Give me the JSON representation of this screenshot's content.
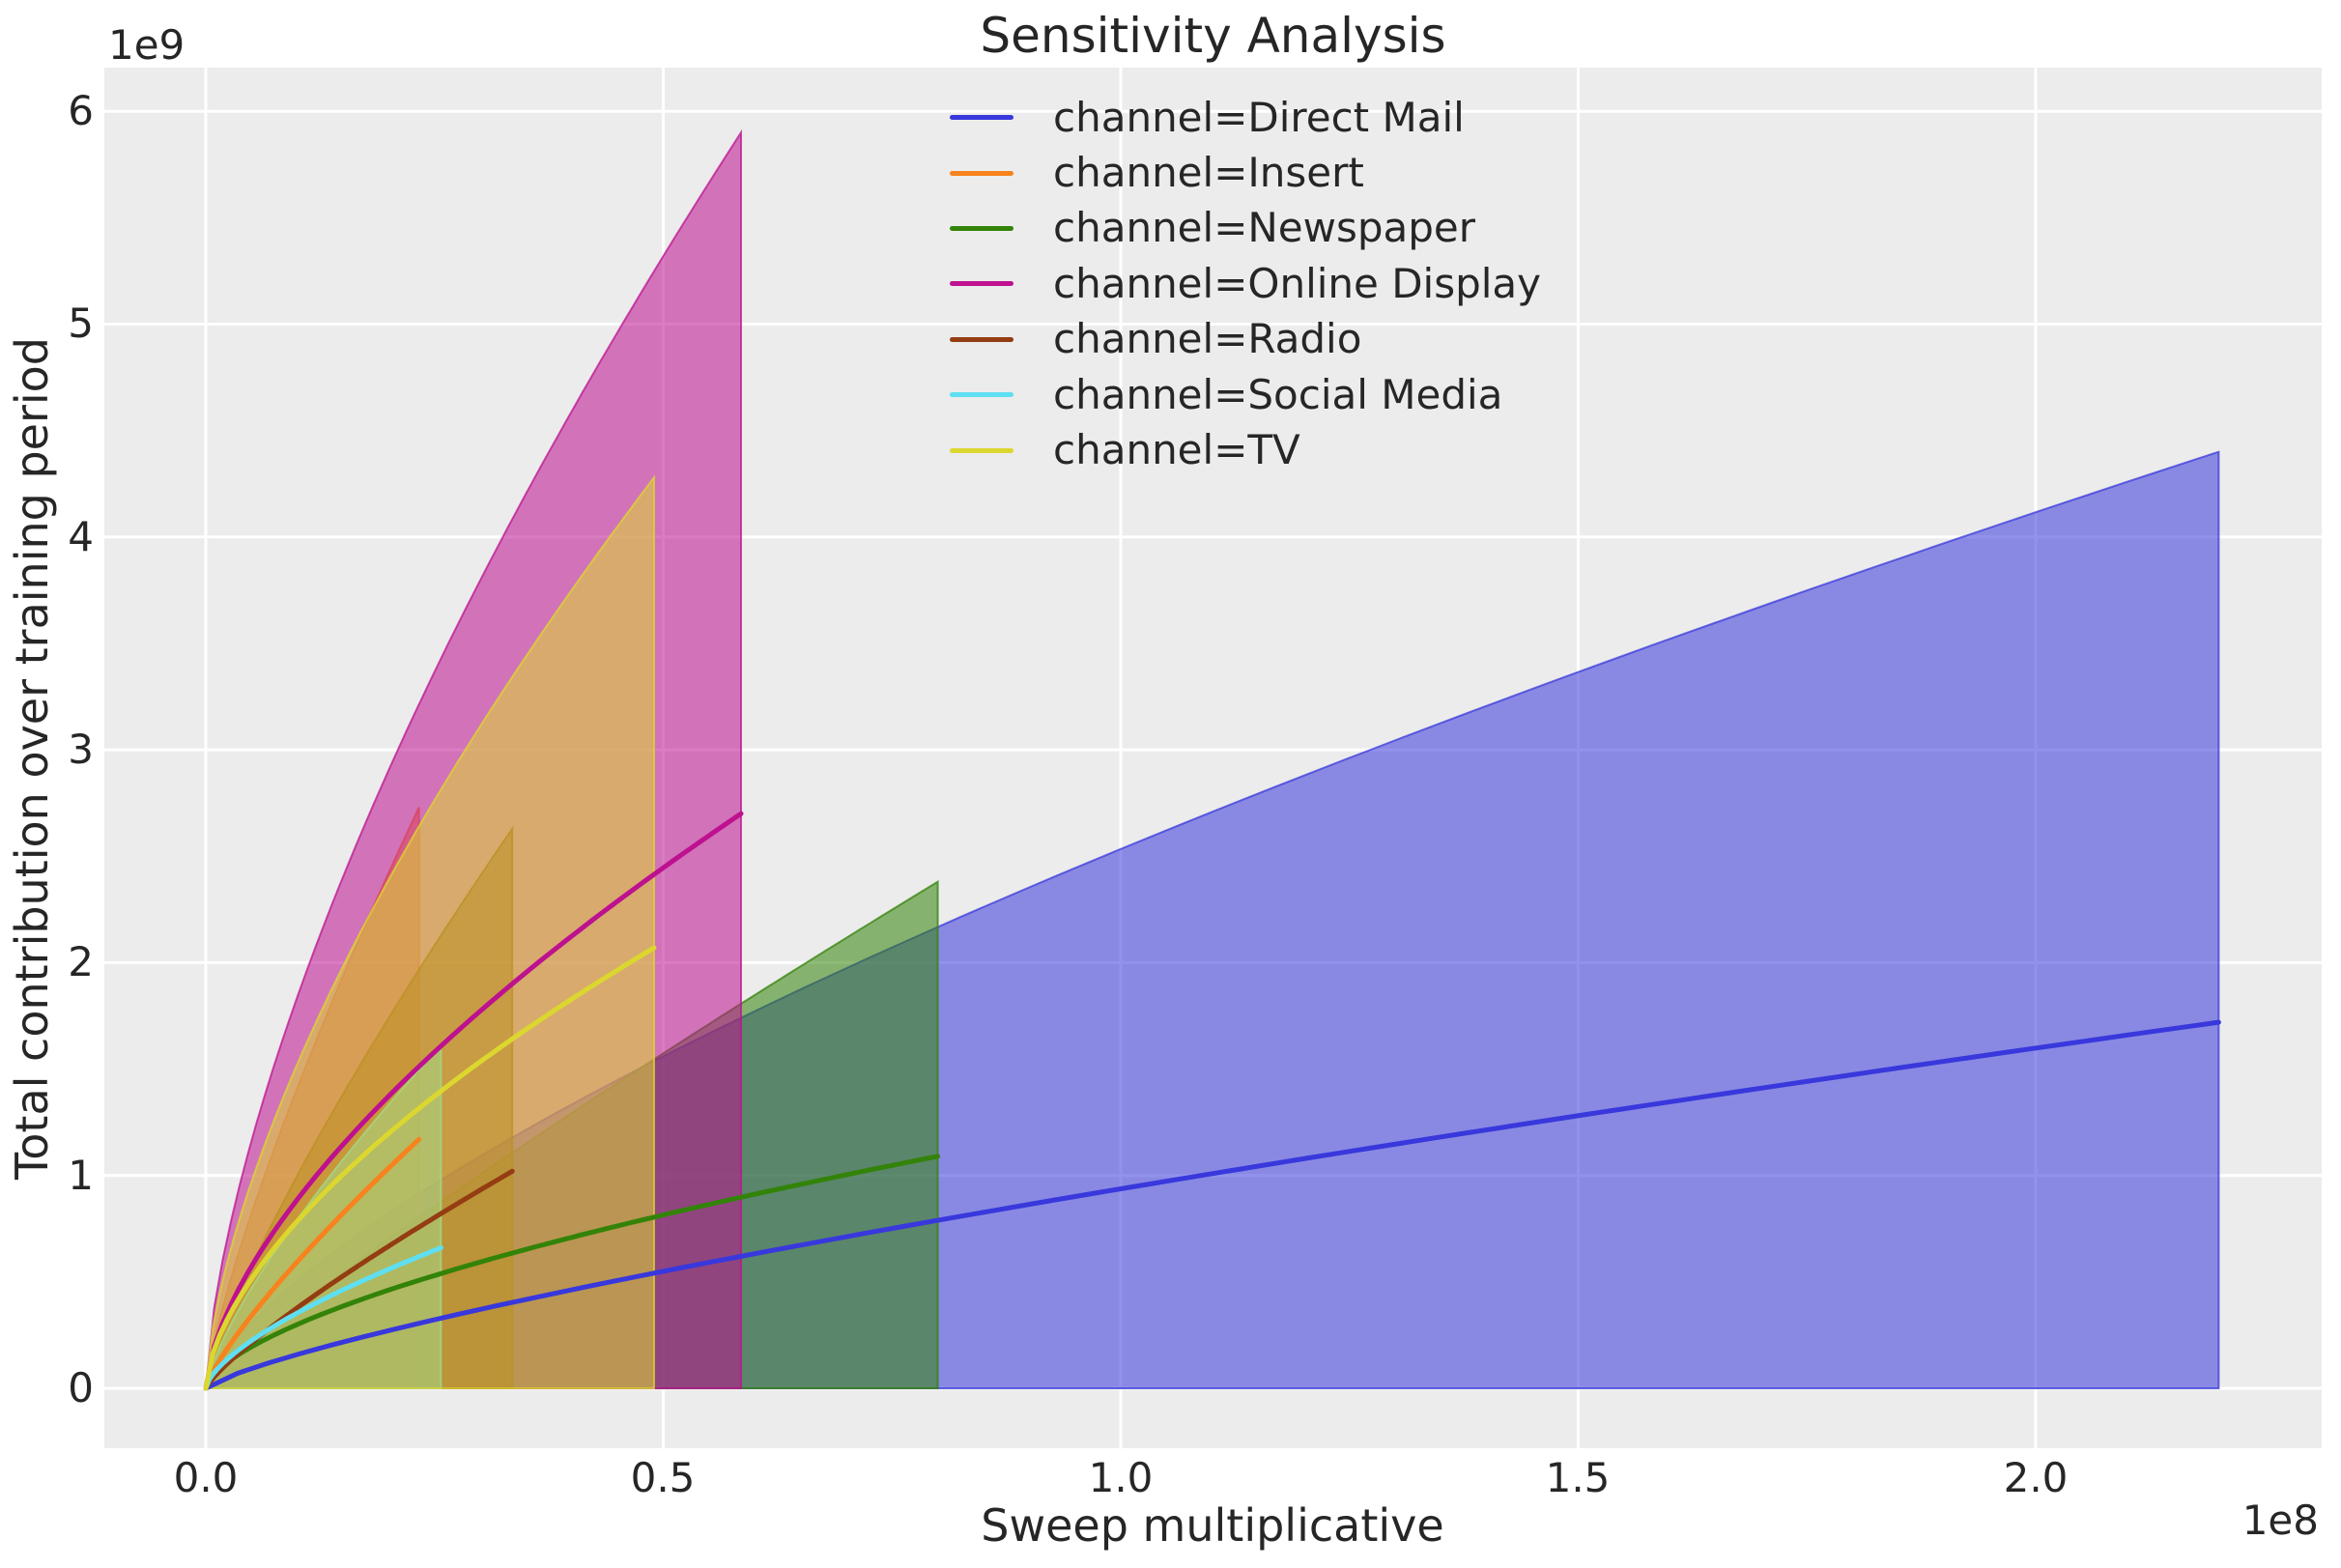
{
  "figure": {
    "title": "Sensitivity Analysis",
    "x_axis_label": "Sweep multiplicative",
    "y_axis_label": "Total contribution over training period",
    "x_offset_text": "1e8",
    "y_offset_text": "1e9"
  },
  "chart_data": {
    "type": "line",
    "title": "Sensitivity Analysis",
    "xlabel": "Sweep multiplicative",
    "ylabel": "Total contribution over training period",
    "x_unit_multiplier": "1e8",
    "y_unit_multiplier": "1e9",
    "xlim": [
      -0.111,
      2.316
    ],
    "ylim": [
      -0.295,
      6.2
    ],
    "grid": true,
    "legend_position": "upper center, frameless",
    "style": {
      "plot_bg": "#ececec",
      "grid_color": "#ffffff",
      "text_color": "#262626",
      "band_fill_alpha": 0.55,
      "band_edge_alpha": 0.75
    },
    "x_ticks": [
      0.0,
      0.5,
      1.0,
      1.5,
      2.0
    ],
    "x_tick_labels": [
      "0.0",
      "0.5",
      "1.0",
      "1.5",
      "2.0"
    ],
    "y_ticks": [
      0,
      1,
      2,
      3,
      4,
      5,
      6
    ],
    "y_tick_labels": [
      "0",
      "1",
      "2",
      "3",
      "4",
      "5",
      "6"
    ],
    "series": [
      {
        "id": "direct-mail",
        "label": "channel=Direct Mail",
        "color": "#3838dc",
        "x_end": 2.2,
        "line_end_y": 1.72,
        "upper_end_y": 4.4,
        "lower_bound_y": 0,
        "p_line": 0.77,
        "p_upper": 0.7,
        "line_points": [
          [
            0,
            0
          ],
          [
            0.44,
            0.5
          ],
          [
            0.88,
            0.85
          ],
          [
            1.32,
            1.16
          ],
          [
            1.76,
            1.45
          ],
          [
            2.2,
            1.72
          ]
        ],
        "upper_points": [
          [
            0,
            0
          ],
          [
            0.44,
            1.43
          ],
          [
            0.88,
            2.32
          ],
          [
            1.32,
            3.08
          ],
          [
            1.76,
            3.76
          ],
          [
            2.2,
            4.4
          ]
        ]
      },
      {
        "id": "insert",
        "label": "channel=Insert",
        "color": "#f8821d",
        "x_end": 0.233,
        "line_end_y": 1.17,
        "upper_end_y": 2.73,
        "lower_bound_y": 0,
        "p_line": 0.8,
        "p_upper": 0.78,
        "line_points": [
          [
            0,
            0
          ],
          [
            0.047,
            0.32
          ],
          [
            0.093,
            0.56
          ],
          [
            0.14,
            0.78
          ],
          [
            0.186,
            0.98
          ],
          [
            0.233,
            1.17
          ]
        ],
        "upper_points": [
          [
            0,
            0
          ],
          [
            0.047,
            0.78
          ],
          [
            0.093,
            1.33
          ],
          [
            0.14,
            1.83
          ],
          [
            0.186,
            2.29
          ],
          [
            0.233,
            2.73
          ]
        ]
      },
      {
        "id": "newspaper",
        "label": "channel=Newspaper",
        "color": "#338309",
        "x_end": 0.8,
        "line_end_y": 1.09,
        "upper_end_y": 2.38,
        "lower_bound_y": 0,
        "p_line": 0.62,
        "p_upper": 0.88,
        "line_points": [
          [
            0,
            0
          ],
          [
            0.16,
            0.4
          ],
          [
            0.32,
            0.62
          ],
          [
            0.48,
            0.79
          ],
          [
            0.64,
            0.95
          ],
          [
            0.8,
            1.09
          ]
        ],
        "upper_points": [
          [
            0,
            0
          ],
          [
            0.16,
            0.58
          ],
          [
            0.32,
            1.06
          ],
          [
            0.48,
            1.52
          ],
          [
            0.64,
            1.96
          ],
          [
            0.8,
            2.38
          ]
        ]
      },
      {
        "id": "online-display",
        "label": "channel=Online Display",
        "color": "#bd1190",
        "x_end": 0.585,
        "line_end_y": 2.7,
        "upper_end_y": 5.9,
        "lower_bound_y": 0,
        "p_line": 0.63,
        "p_upper": 0.66,
        "line_points": [
          [
            0,
            0
          ],
          [
            0.117,
            0.98
          ],
          [
            0.234,
            1.52
          ],
          [
            0.351,
            1.96
          ],
          [
            0.468,
            2.35
          ],
          [
            0.585,
            2.7
          ]
        ],
        "upper_points": [
          [
            0,
            0
          ],
          [
            0.117,
            2.04
          ],
          [
            0.234,
            3.22
          ],
          [
            0.351,
            4.21
          ],
          [
            0.468,
            5.09
          ],
          [
            0.585,
            5.9
          ]
        ]
      },
      {
        "id": "radio",
        "label": "channel=Radio",
        "color": "#943c12",
        "x_end": 0.335,
        "line_end_y": 1.02,
        "upper_end_y": 2.63,
        "lower_bound_y": 0,
        "p_line": 0.82,
        "p_upper": 0.8,
        "line_points": [
          [
            0,
            0
          ],
          [
            0.067,
            0.27
          ],
          [
            0.134,
            0.48
          ],
          [
            0.201,
            0.67
          ],
          [
            0.268,
            0.85
          ],
          [
            0.335,
            1.02
          ]
        ],
        "upper_points": [
          [
            0,
            0
          ],
          [
            0.067,
            0.73
          ],
          [
            0.134,
            1.26
          ],
          [
            0.201,
            1.75
          ],
          [
            0.268,
            2.2
          ],
          [
            0.335,
            2.63
          ]
        ]
      },
      {
        "id": "social-media",
        "label": "channel=Social Media",
        "color": "#5edff2",
        "x_end": 0.257,
        "line_end_y": 0.66,
        "upper_end_y": 1.61,
        "lower_bound_y": 0,
        "p_line": 0.66,
        "p_upper": 0.75,
        "line_points": [
          [
            0,
            0
          ],
          [
            0.051,
            0.23
          ],
          [
            0.103,
            0.36
          ],
          [
            0.154,
            0.47
          ],
          [
            0.206,
            0.57
          ],
          [
            0.257,
            0.66
          ]
        ],
        "upper_points": [
          [
            0,
            0
          ],
          [
            0.051,
            0.48
          ],
          [
            0.103,
            0.81
          ],
          [
            0.154,
            1.1
          ],
          [
            0.206,
            1.36
          ],
          [
            0.257,
            1.61
          ]
        ]
      },
      {
        "id": "tv",
        "label": "channel=TV",
        "color": "#dcd72f",
        "x_end": 0.49,
        "line_end_y": 2.07,
        "upper_end_y": 4.28,
        "lower_bound_y": 0,
        "p_line": 0.61,
        "p_upper": 0.65,
        "line_points": [
          [
            0,
            0
          ],
          [
            0.098,
            0.78
          ],
          [
            0.196,
            1.18
          ],
          [
            0.294,
            1.52
          ],
          [
            0.392,
            1.81
          ],
          [
            0.49,
            2.07
          ]
        ],
        "upper_points": [
          [
            0,
            0
          ],
          [
            0.098,
            1.5
          ],
          [
            0.196,
            2.36
          ],
          [
            0.294,
            3.07
          ],
          [
            0.392,
            3.7
          ],
          [
            0.49,
            4.28
          ]
        ]
      }
    ]
  }
}
